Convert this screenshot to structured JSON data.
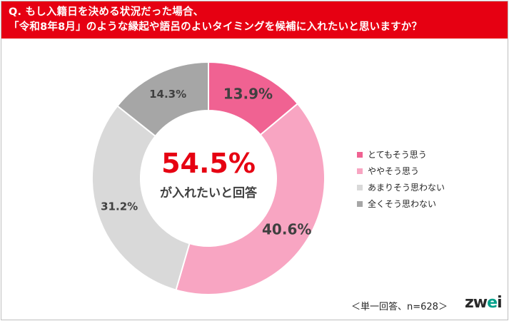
{
  "header": {
    "line1": "Q. もし入籍日を決める状況だった場合、",
    "line2": "「令和8年8月」のような縁起や語呂のよいタイミングを候補に入れたいと思いますか？"
  },
  "chart_data": {
    "type": "pie",
    "variant": "donut",
    "series": [
      {
        "name": "とてもそう思う",
        "value": 13.9,
        "label": "13.9%",
        "color": "#f06292"
      },
      {
        "name": "ややそう思う",
        "value": 40.6,
        "label": "40.6%",
        "color": "#f8a5c2"
      },
      {
        "name": "あまりそう思わない",
        "value": 31.2,
        "label": "31.2%",
        "color": "#d9d9d9"
      },
      {
        "name": "全くそう思わない",
        "value": 14.3,
        "label": "14.3%",
        "color": "#a6a6a6"
      }
    ],
    "center": {
      "value": "54.5%",
      "label": "が入れたいと回答"
    },
    "legend_position": "right"
  },
  "footnote": "＜単一回答、n=628＞",
  "logo": {
    "text_main": "zw",
    "text_accent": "e",
    "text_end": "i"
  },
  "colors": {
    "accent": "#e60012",
    "label_dark": "#404040",
    "label_light": "#404040"
  }
}
